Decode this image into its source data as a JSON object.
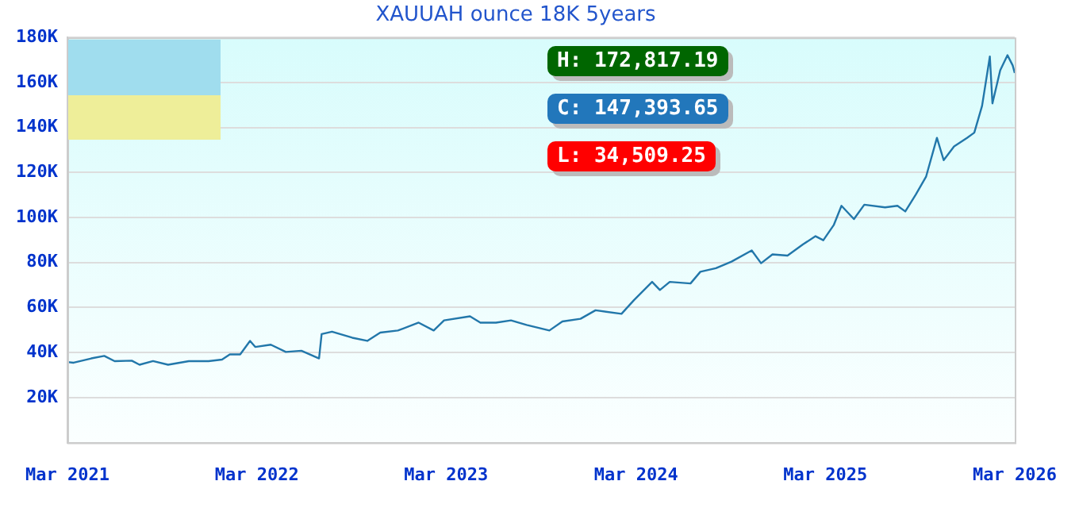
{
  "chart_data": {
    "type": "line",
    "title": "XAUUAH ounce 18K 5years",
    "x": [
      "2021-03-01",
      "2021-03-13",
      "2021-04-16",
      "2021-05-11",
      "2021-05-31",
      "2021-07-03",
      "2021-07-18",
      "2021-08-13",
      "2021-09-11",
      "2021-10-21",
      "2021-11-28",
      "2021-12-24",
      "2022-01-08",
      "2022-01-28",
      "2022-02-16",
      "2022-02-26",
      "2022-03-28",
      "2022-04-26",
      "2022-05-26",
      "2022-06-29",
      "2022-07-04",
      "2022-07-24",
      "2022-09-01",
      "2022-09-30",
      "2022-10-25",
      "2022-11-28",
      "2023-01-07",
      "2023-02-05",
      "2023-02-25",
      "2023-04-16",
      "2023-05-06",
      "2023-06-05",
      "2023-07-04",
      "2023-08-03",
      "2023-09-16",
      "2023-10-11",
      "2023-11-15",
      "2023-12-14",
      "2024-02-02",
      "2024-02-26",
      "2024-04-01",
      "2024-04-16",
      "2024-05-05",
      "2024-06-14",
      "2024-07-03",
      "2024-08-02",
      "2024-09-01",
      "2024-10-10",
      "2024-10-28",
      "2024-11-19",
      "2024-12-18",
      "2025-01-17",
      "2025-02-10",
      "2025-02-25",
      "2025-03-17",
      "2025-04-01",
      "2025-04-25",
      "2025-05-15",
      "2025-06-24",
      "2025-07-18",
      "2025-08-02",
      "2025-08-22",
      "2025-09-11",
      "2025-10-02",
      "2025-10-15",
      "2025-11-04",
      "2025-11-29",
      "2025-12-13",
      "2025-12-28",
      "2026-01-12",
      "2026-01-17",
      "2026-02-01",
      "2026-02-15",
      "2026-02-25",
      "2026-03-01"
    ],
    "series": [
      {
        "color": "#2277aa",
        "values": [
          35800,
          35500,
          37400,
          38500,
          36200,
          36400,
          34600,
          36200,
          34600,
          36200,
          36200,
          36900,
          39200,
          39200,
          45200,
          42500,
          43500,
          40300,
          40800,
          37400,
          48200,
          49300,
          46600,
          45200,
          48900,
          49800,
          53300,
          49800,
          54300,
          56100,
          53300,
          53300,
          54300,
          52300,
          49800,
          53800,
          55000,
          58800,
          57200,
          63300,
          71400,
          67800,
          71400,
          70700,
          75900,
          77500,
          80400,
          85400,
          79700,
          83600,
          83100,
          88100,
          91700,
          89900,
          96600,
          105200,
          99300,
          105700,
          104500,
          105200,
          102700,
          110100,
          118100,
          135400,
          125500,
          131600,
          135400,
          137700,
          149600,
          171500,
          150700,
          165400,
          172100,
          167600,
          164200
        ]
      }
    ],
    "xlim": [
      "2021-03-01",
      "2026-03-01"
    ],
    "xticks": [
      {
        "value": "2021-03-01",
        "label": "Mar 2021"
      },
      {
        "value": "2022-03-01",
        "label": "Mar 2022"
      },
      {
        "value": "2023-03-01",
        "label": "Mar 2023"
      },
      {
        "value": "2024-03-01",
        "label": "Mar 2024"
      },
      {
        "value": "2025-03-01",
        "label": "Mar 2025"
      },
      {
        "value": "2026-03-01",
        "label": "Mar 2026"
      }
    ],
    "ylim": [
      0,
      180000
    ],
    "yticks": [
      {
        "value": 0,
        "label": null
      },
      {
        "value": 20000,
        "label": "20K"
      },
      {
        "value": 40000,
        "label": "40K"
      },
      {
        "value": 60000,
        "label": "60K"
      },
      {
        "value": 80000,
        "label": "80K"
      },
      {
        "value": 100000,
        "label": "100K"
      },
      {
        "value": 120000,
        "label": "120K"
      },
      {
        "value": 140000,
        "label": "140K"
      },
      {
        "value": 160000,
        "label": "160K"
      },
      {
        "value": 180000,
        "label": "180K"
      }
    ],
    "grid": "y",
    "legend": false,
    "marker": "none",
    "line_style": "solid",
    "annotations": [
      "H: 172,817.19",
      "C: 147,393.65",
      "L: 34,509.25"
    ]
  }
}
